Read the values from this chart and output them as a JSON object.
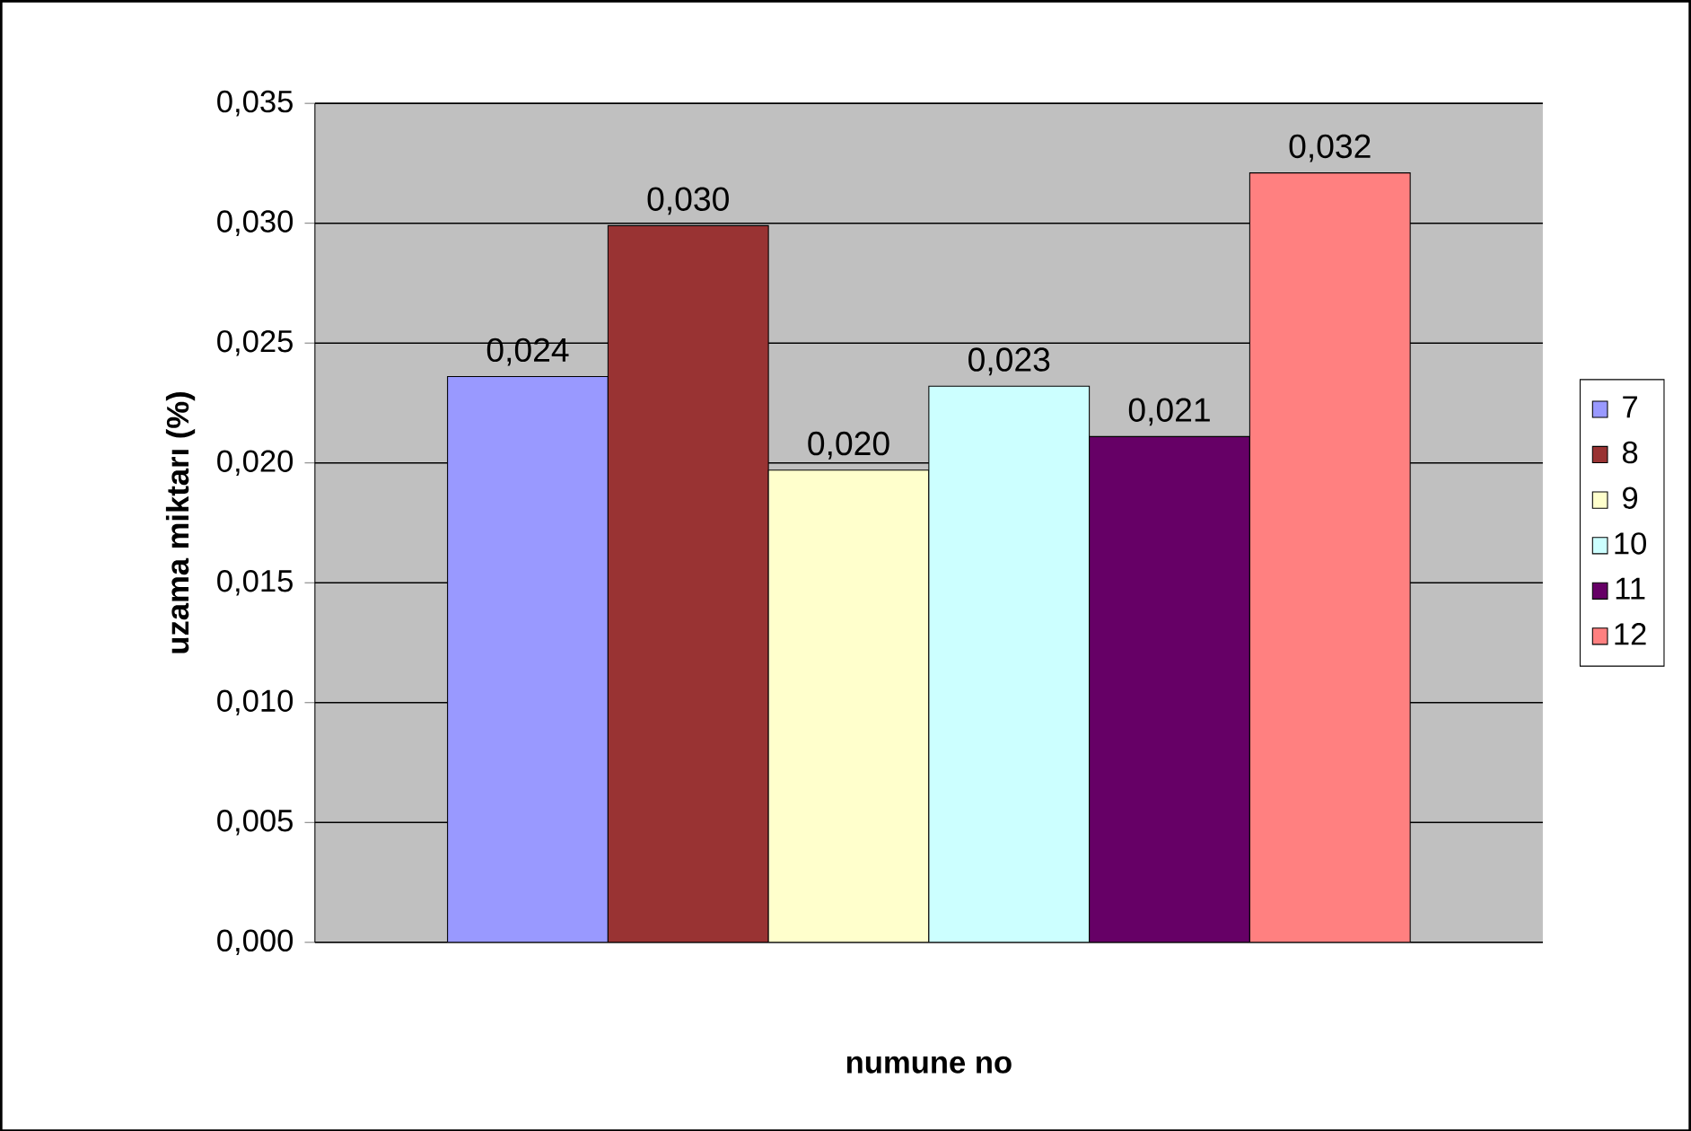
{
  "chart_data": {
    "type": "bar",
    "xlabel": "numune no",
    "ylabel": "uzama miktarı (%)",
    "categories": [
      null
    ],
    "series": [
      {
        "name": "7",
        "color": "#9999ff",
        "values": [
          0.0236
        ],
        "value_labels": [
          "0,024"
        ]
      },
      {
        "name": "8",
        "color": "#993333",
        "values": [
          0.0299
        ],
        "value_labels": [
          "0,030"
        ]
      },
      {
        "name": "9",
        "color": "#ffffcc",
        "values": [
          0.0197
        ],
        "value_labels": [
          "0,020"
        ]
      },
      {
        "name": "10",
        "color": "#ccffff",
        "values": [
          0.0232
        ],
        "value_labels": [
          "0,023"
        ]
      },
      {
        "name": "11",
        "color": "#660066",
        "values": [
          0.0211
        ],
        "value_labels": [
          "0,021"
        ]
      },
      {
        "name": "12",
        "color": "#ff8080",
        "values": [
          0.0321
        ],
        "value_labels": [
          "0,032"
        ]
      }
    ],
    "ylim": [
      0,
      0.035
    ],
    "yticks": [
      {
        "value": 0,
        "label": "0,000"
      },
      {
        "value": 0.005,
        "label": "0,005"
      },
      {
        "value": 0.01,
        "label": "0,010"
      },
      {
        "value": 0.015,
        "label": "0,015"
      },
      {
        "value": 0.02,
        "label": "0,020"
      },
      {
        "value": 0.025,
        "label": "0,025"
      },
      {
        "value": 0.03,
        "label": "0,030"
      },
      {
        "value": 0.035,
        "label": "0,035"
      }
    ],
    "grid": "y",
    "legend": "right"
  }
}
